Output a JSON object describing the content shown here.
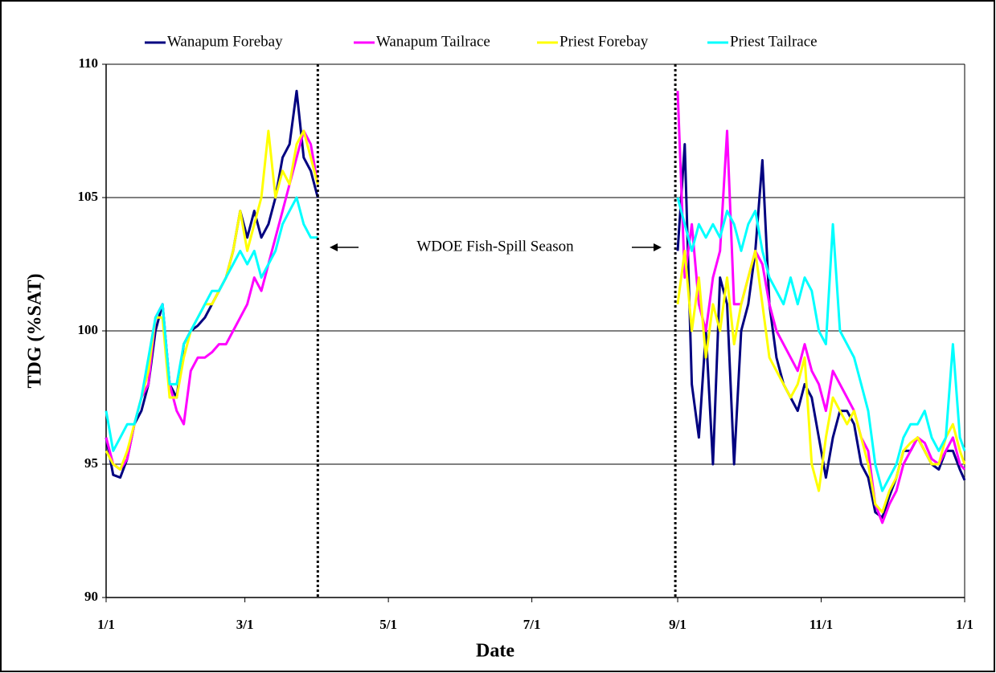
{
  "chart_data": {
    "type": "line",
    "x_label": "Date",
    "y_label": "TDG (%SAT)",
    "annotation": "WDOE Fish-Spill Season",
    "vlines": [
      90,
      242
    ],
    "x": [
      0,
      3,
      6,
      9,
      12,
      15,
      18,
      21,
      24,
      27,
      30,
      33,
      36,
      39,
      42,
      45,
      48,
      51,
      54,
      57,
      60,
      63,
      66,
      69,
      72,
      75,
      78,
      81,
      84,
      87,
      90,
      165,
      243,
      246,
      249,
      252,
      255,
      258,
      261,
      264,
      267,
      270,
      273,
      276,
      279,
      282,
      285,
      288,
      291,
      294,
      297,
      300,
      303,
      306,
      309,
      312,
      315,
      318,
      321,
      324,
      327,
      330,
      333,
      336,
      339,
      342,
      345,
      348,
      351,
      354,
      357,
      360,
      363,
      365
    ],
    "series": [
      {
        "name": "Wanapum Forebay",
        "color": "#000080",
        "values": [
          96,
          94.6,
          94.5,
          95.2,
          96.5,
          97,
          98,
          100,
          101,
          98,
          97.5,
          99.5,
          100,
          100.2,
          100.5,
          101,
          101.5,
          102,
          103,
          104.5,
          103.5,
          104.5,
          103.5,
          104,
          105,
          106.5,
          107,
          109,
          106.5,
          106,
          105,
          null,
          103,
          107,
          98,
          96,
          100,
          95,
          102,
          101,
          95,
          100,
          101,
          103,
          106.4,
          101,
          99,
          98,
          97.5,
          97,
          98,
          97.5,
          96,
          94.5,
          96,
          97,
          97,
          96.5,
          95,
          94.5,
          93.2,
          93,
          93.8,
          94.5,
          95.5,
          95.5,
          96,
          95.5,
          95,
          94.8,
          95.5,
          95.5,
          94.8,
          94.4
        ]
      },
      {
        "name": "Wanapum Tailrace",
        "color": "#ff00ff",
        "values": [
          96,
          95,
          94.8,
          95.2,
          96.5,
          97.5,
          98,
          100.5,
          101,
          98,
          97,
          96.5,
          98.5,
          99,
          99,
          99.2,
          99.5,
          99.5,
          100,
          100.5,
          101,
          102,
          101.5,
          102.5,
          103.5,
          104.5,
          105.5,
          106.5,
          107.5,
          107,
          105.5,
          null,
          109,
          102,
          104,
          101,
          100,
          102,
          103,
          107.5,
          101,
          101,
          102,
          103,
          102.5,
          101,
          100,
          99.5,
          99,
          98.5,
          99.5,
          98.5,
          98,
          97,
          98.5,
          98,
          97.5,
          97,
          96,
          95.5,
          93.5,
          92.8,
          93.5,
          94,
          95,
          95.5,
          96,
          95.8,
          95.2,
          95,
          95.5,
          96,
          95,
          94.8
        ]
      },
      {
        "name": "Priest Forebay",
        "color": "#ffff00",
        "values": [
          95.5,
          95,
          94.8,
          95.5,
          96.5,
          97.5,
          98.5,
          100.5,
          100.5,
          97.5,
          97.5,
          99,
          100,
          100.5,
          101,
          101,
          101.5,
          102,
          103,
          104.5,
          103,
          104,
          105,
          107.5,
          105,
          106,
          105.5,
          107,
          107.5,
          106.5,
          105.5,
          null,
          101,
          103,
          100,
          102,
          99,
          101,
          100,
          102,
          99.5,
          101,
          102,
          103,
          101,
          99,
          98.5,
          98,
          97.5,
          98,
          99,
          95,
          94,
          96,
          97.5,
          97,
          96.5,
          97,
          96,
          95,
          93.5,
          93.2,
          94,
          94.5,
          95.5,
          95.8,
          96,
          95.5,
          95,
          95,
          96,
          96.5,
          95.5,
          95
        ]
      },
      {
        "name": "Priest Tailrace",
        "color": "#00ffff",
        "values": [
          97,
          95.5,
          96,
          96.5,
          96.5,
          97.5,
          99,
          100.5,
          101,
          98,
          98,
          99.5,
          100,
          100.5,
          101,
          101.5,
          101.5,
          102,
          102.5,
          103,
          102.5,
          103,
          102,
          102.5,
          103,
          104,
          104.5,
          105,
          104,
          103.5,
          103.5,
          null,
          105,
          104,
          103,
          104,
          103.5,
          104,
          103.5,
          104.5,
          104,
          103,
          104,
          104.5,
          103,
          102,
          101.5,
          101,
          102,
          101,
          102,
          101.5,
          100,
          99.5,
          104,
          100,
          99.5,
          99,
          98,
          97,
          95,
          94,
          94.5,
          95,
          96,
          96.5,
          96.5,
          97,
          96,
          95.5,
          96,
          99.5,
          96,
          95.5
        ]
      }
    ],
    "xlim": [
      0,
      365
    ],
    "xticks": [
      {
        "value": 0,
        "label": "1/1"
      },
      {
        "value": 59,
        "label": "3/1"
      },
      {
        "value": 120,
        "label": "5/1"
      },
      {
        "value": 181,
        "label": "7/1"
      },
      {
        "value": 243,
        "label": "9/1"
      },
      {
        "value": 304,
        "label": "11/1"
      },
      {
        "value": 365,
        "label": "1/1"
      }
    ],
    "ylim": [
      90,
      110
    ],
    "yticks": [
      90,
      95,
      100,
      105,
      110
    ],
    "grid": true,
    "legend": "top"
  }
}
